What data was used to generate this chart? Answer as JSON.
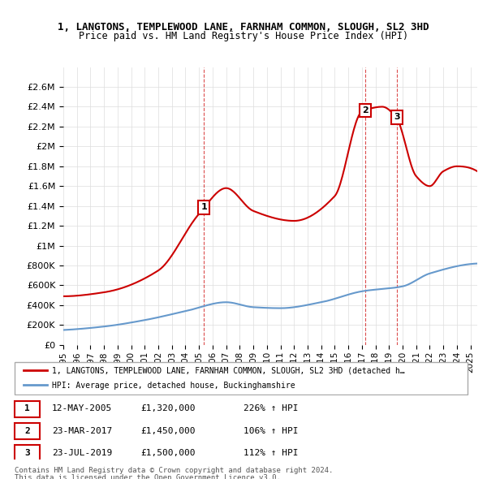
{
  "title": "1, LANGTONS, TEMPLEWOOD LANE, FARNHAM COMMON, SLOUGH, SL2 3HD",
  "subtitle": "Price paid vs. HM Land Registry's House Price Index (HPI)",
  "legend_line1": "1, LANGTONS, TEMPLEWOOD LANE, FARNHAM COMMON, SLOUGH, SL2 3HD (detached h…",
  "legend_line2": "HPI: Average price, detached house, Buckinghamshire",
  "line_color": "#cc0000",
  "hpi_color": "#6699cc",
  "background_color": "#ffffff",
  "grid_color": "#dddddd",
  "transactions": [
    {
      "label": "1",
      "date_num": 2005.36,
      "price": 1320000,
      "date_str": "12-MAY-2005",
      "pct": "226% ↑ HPI"
    },
    {
      "label": "2",
      "date_num": 2017.23,
      "price": 1450000,
      "date_str": "23-MAR-2017",
      "pct": "106% ↑ HPI"
    },
    {
      "label": "3",
      "date_num": 2019.56,
      "price": 1500000,
      "date_str": "23-JUL-2019",
      "pct": "112% ↑ HPI"
    }
  ],
  "footer1": "Contains HM Land Registry data © Crown copyright and database right 2024.",
  "footer2": "This data is licensed under the Open Government Licence v3.0.",
  "ylim": [
    0,
    2800000
  ],
  "yticks": [
    0,
    200000,
    400000,
    600000,
    800000,
    1000000,
    1200000,
    1400000,
    1600000,
    1800000,
    2000000,
    2200000,
    2400000,
    2600000
  ],
  "xlim_start": 1995.0,
  "xlim_end": 2025.5,
  "xticks": [
    1995,
    1996,
    1997,
    1998,
    1999,
    2000,
    2001,
    2002,
    2003,
    2004,
    2005,
    2006,
    2007,
    2008,
    2009,
    2010,
    2011,
    2012,
    2013,
    2014,
    2015,
    2016,
    2017,
    2018,
    2019,
    2020,
    2021,
    2022,
    2023,
    2024,
    2025
  ]
}
